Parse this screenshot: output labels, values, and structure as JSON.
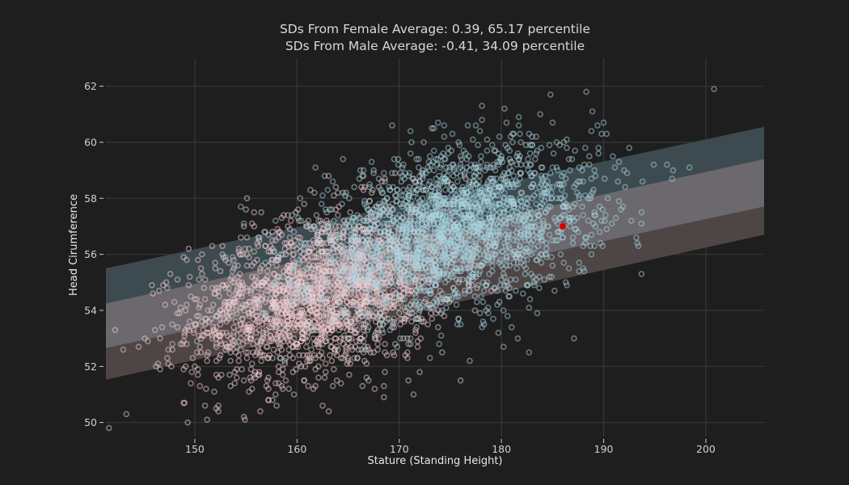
{
  "chart_data": {
    "type": "scatter",
    "title_lines": [
      "SDs From Female Average: 0.39, 65.17 percentile",
      "SDs From Male Average: -0.41, 34.09 percentile"
    ],
    "xlabel": "Stature (Standing Height)",
    "ylabel": "Head Cirumference",
    "xlim": [
      141.3,
      205.7
    ],
    "ylim": [
      49.5,
      63.0
    ],
    "xticks": [
      150,
      160,
      170,
      180,
      190,
      200
    ],
    "yticks": [
      50,
      52,
      54,
      56,
      58,
      60,
      62
    ],
    "grid": true,
    "series": [
      {
        "name": "female",
        "color": "#f4cfd4",
        "n": 2000,
        "x_mean": 162.5,
        "x_sd": 6.5,
        "y_mean": 54.6,
        "y_sd": 1.55,
        "corr": 0.35
      },
      {
        "name": "male",
        "color": "#a9d6e2",
        "n": 2000,
        "x_mean": 175.5,
        "x_sd": 7.0,
        "y_mean": 56.9,
        "y_sd": 1.5,
        "corr": 0.35
      }
    ],
    "bands": [
      {
        "name": "upper-band",
        "color": "#3d4b50",
        "lower_at_xmin": 54.25,
        "upper_at_xmin": 55.5,
        "lower_at_xmax": 59.4,
        "upper_at_xmax": 60.55
      },
      {
        "name": "middle-band",
        "color": "#6b696d",
        "lower_at_xmin": 52.65,
        "upper_at_xmin": 54.25,
        "lower_at_xmax": 57.7,
        "upper_at_xmax": 59.4
      },
      {
        "name": "lower-band",
        "color": "#4e4545",
        "lower_at_xmin": 51.53,
        "upper_at_xmin": 52.65,
        "lower_at_xmax": 56.7,
        "upper_at_xmax": 57.7
      }
    ],
    "highlight_point": {
      "x": 186.0,
      "y": 57.0,
      "color": "#dd0000"
    }
  }
}
